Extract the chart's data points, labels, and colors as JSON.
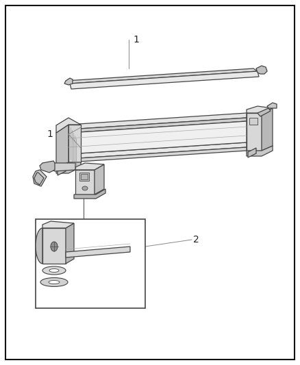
{
  "background_color": "#ffffff",
  "border_color": "#1a1a1a",
  "line_color": "#444444",
  "fig_width": 4.38,
  "fig_height": 5.33,
  "dpi": 100
}
